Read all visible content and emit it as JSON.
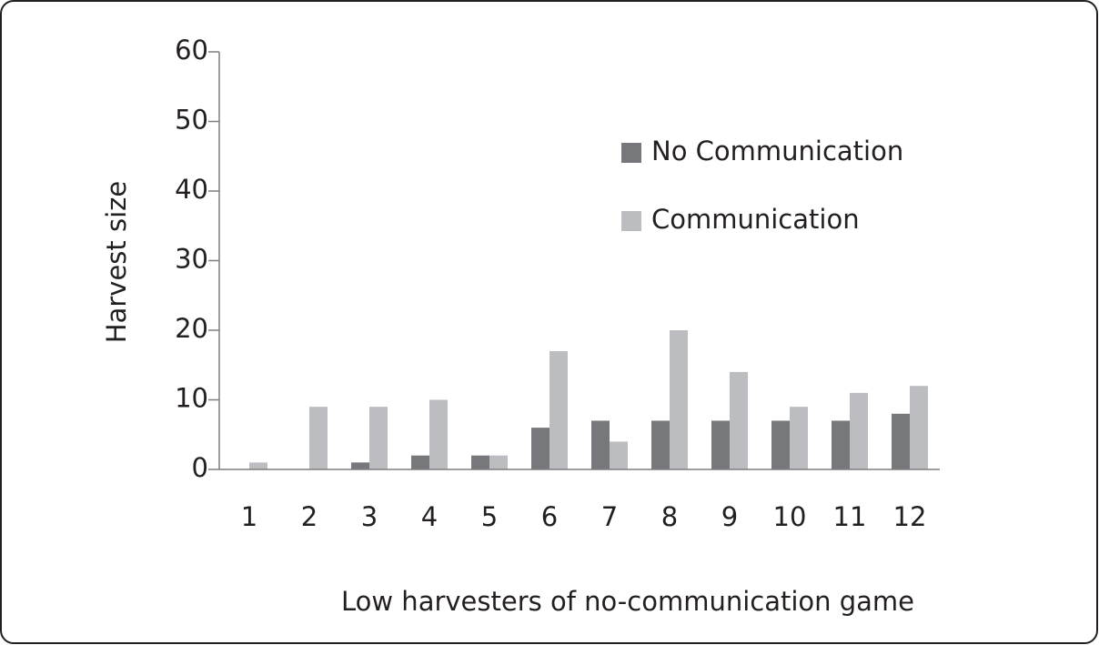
{
  "chart_data": {
    "type": "bar",
    "xlabel": "Low harvesters of no-communication game",
    "ylabel": "Harvest size",
    "categories": [
      "1",
      "2",
      "3",
      "4",
      "5",
      "6",
      "7",
      "8",
      "9",
      "10",
      "11",
      "12"
    ],
    "series": [
      {
        "name": "No Communication",
        "color": "#77787b",
        "values": [
          0,
          0,
          1,
          2,
          2,
          6,
          7,
          7,
          7,
          7,
          7,
          8
        ]
      },
      {
        "name": "Communication",
        "color": "#bcbdc0",
        "values": [
          1,
          9,
          9,
          10,
          2,
          17,
          4,
          20,
          14,
          9,
          11,
          12
        ]
      }
    ],
    "ylim": [
      0,
      60
    ],
    "yticks": [
      0,
      10,
      20,
      30,
      40,
      50,
      60
    ],
    "grid": false,
    "legend": "upper right"
  }
}
